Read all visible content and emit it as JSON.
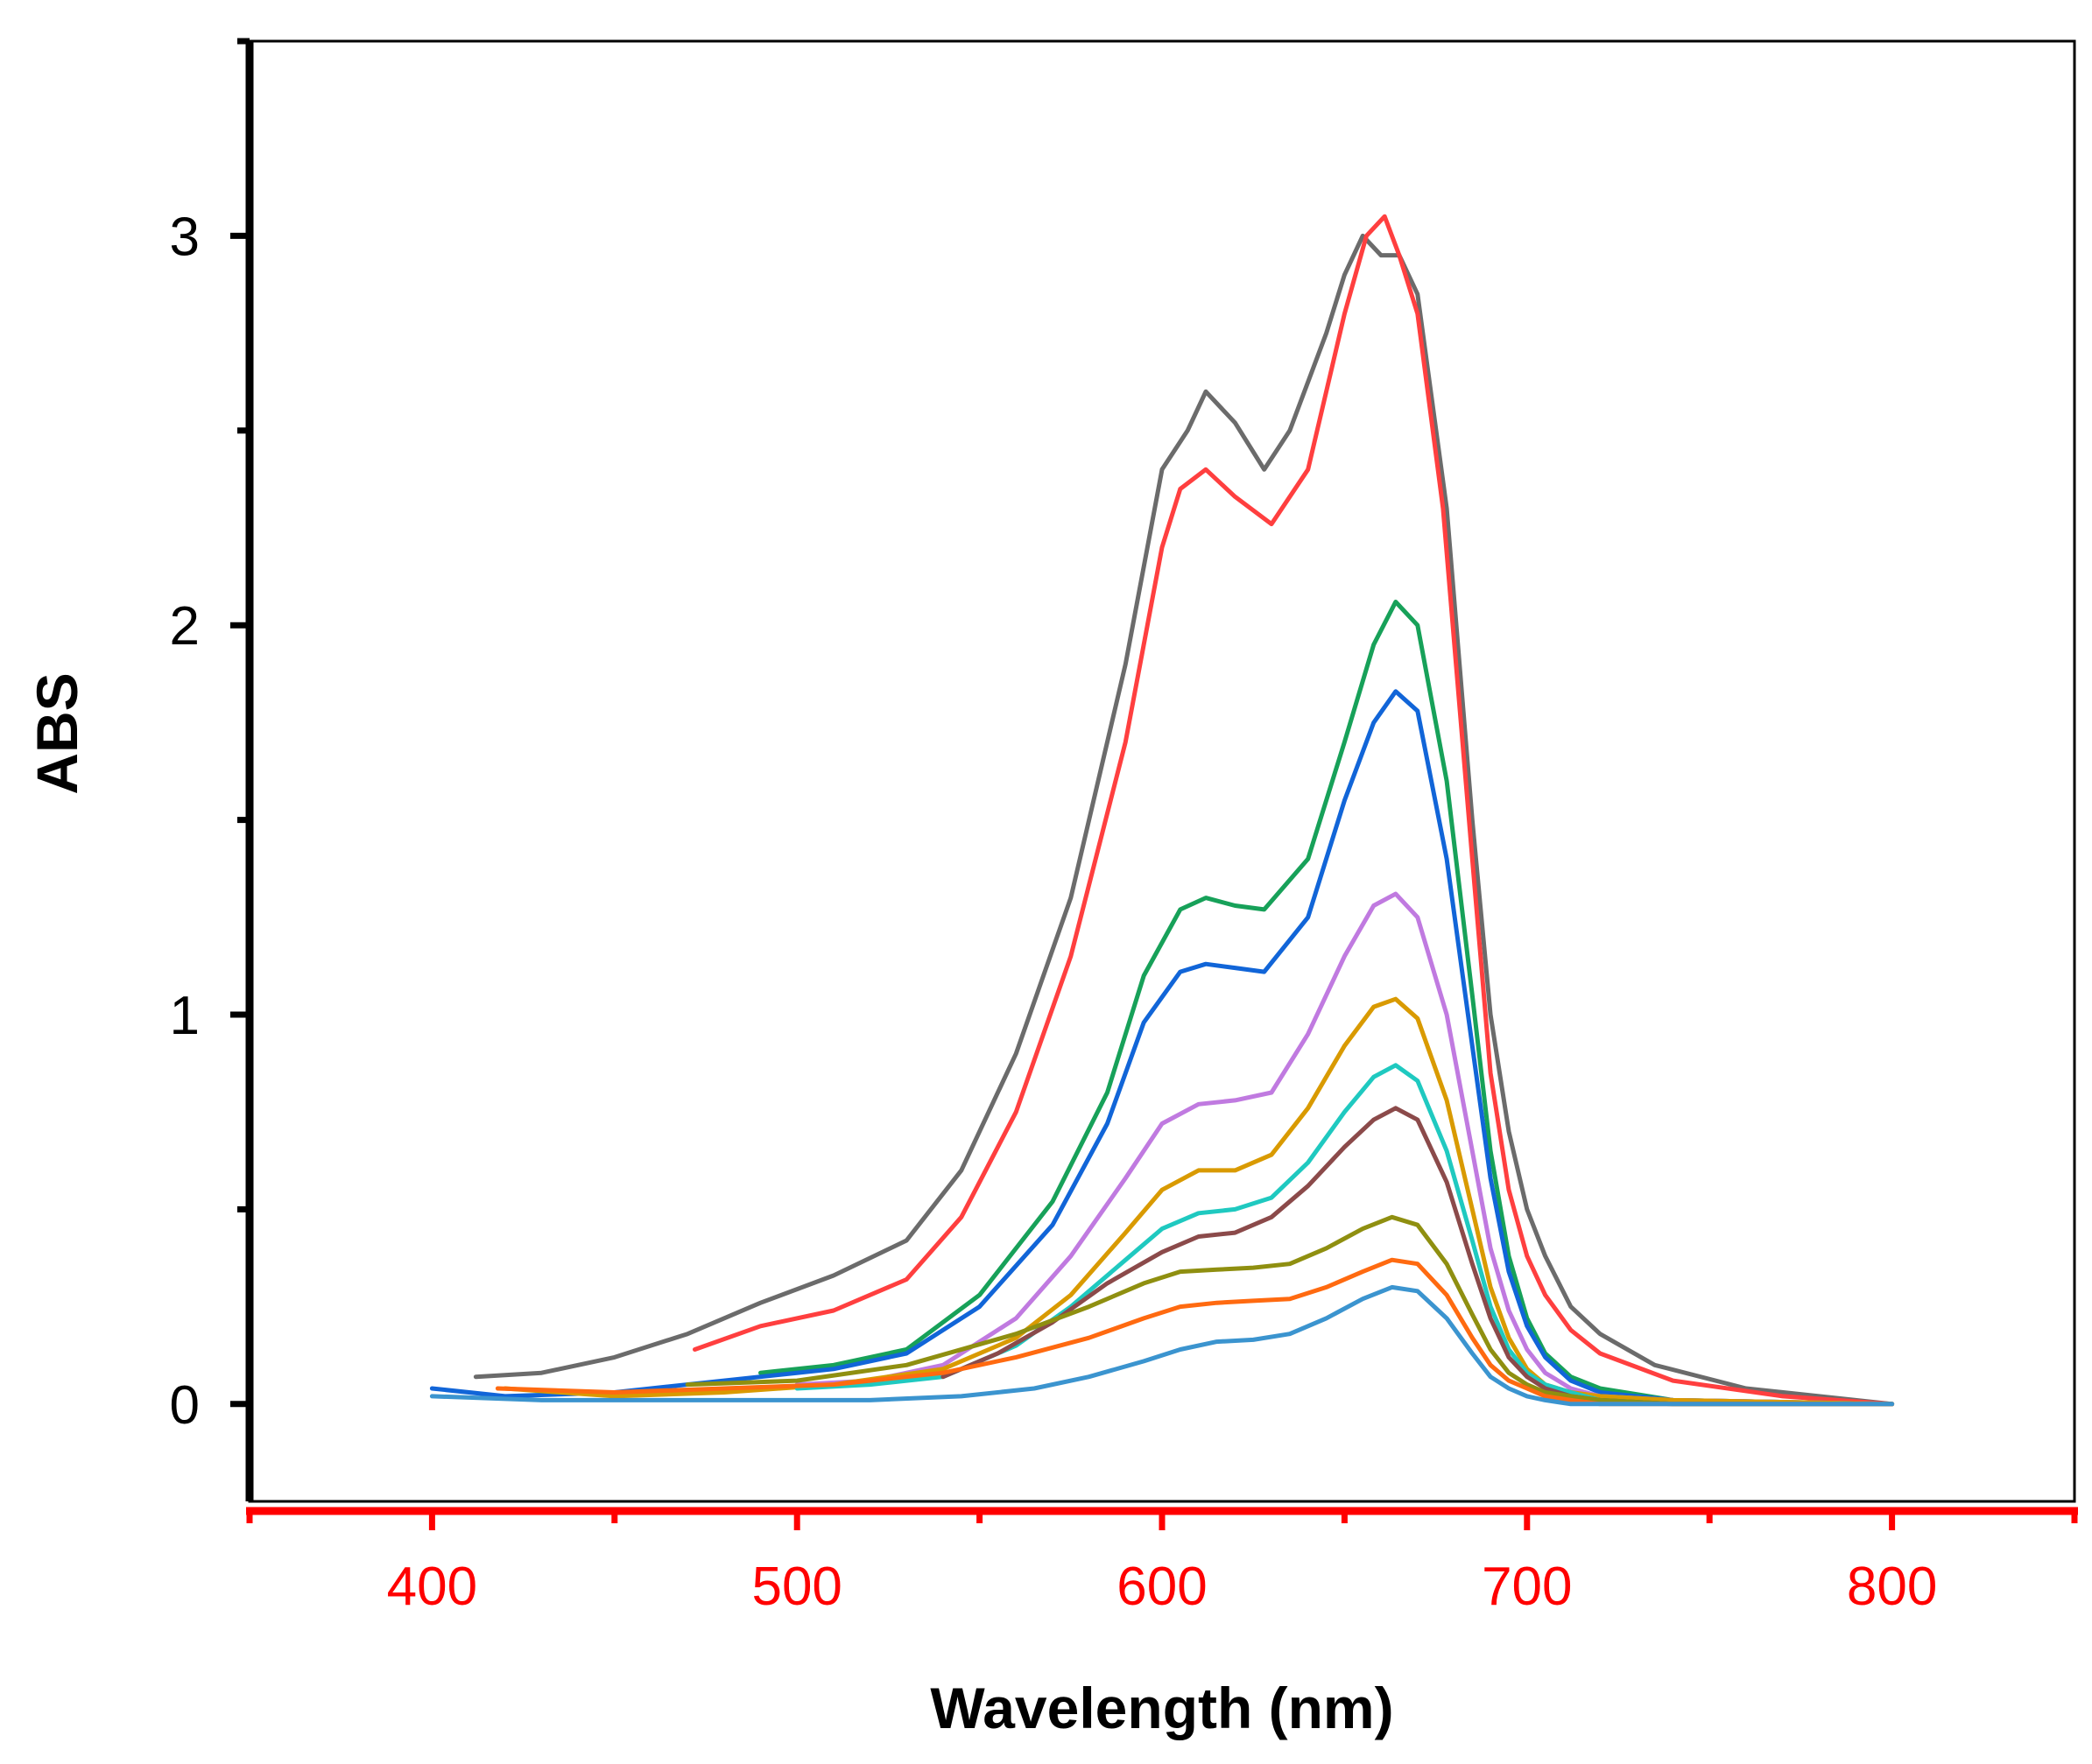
{
  "chart_data": {
    "type": "line",
    "title": "",
    "xlabel": "Wavelength (nm)",
    "ylabel": "ABS",
    "xlim": [
      350,
      850
    ],
    "ylim": [
      -0.25,
      3.5
    ],
    "x_ticks": [
      400,
      500,
      600,
      700,
      800
    ],
    "x_ticks_minor": [
      350,
      450,
      550,
      650,
      750,
      850
    ],
    "y_ticks": [
      0,
      1,
      2,
      3
    ],
    "y_ticks_minor": [
      0.5,
      1.5,
      2.5,
      3.5
    ],
    "grid": false,
    "legend": "none",
    "colors": {
      "x_axis": "#ff0000",
      "x_tick_labels": "#ff0000",
      "y_axis": "#000000",
      "frame": "#000000"
    },
    "series": [
      {
        "name": "series-1",
        "color": "#6b6b6b",
        "x": [
          412,
          430,
          450,
          470,
          490,
          510,
          530,
          545,
          560,
          575,
          590,
          600,
          607,
          612,
          620,
          628,
          635,
          645,
          650,
          655,
          660,
          665,
          670,
          678,
          685,
          690,
          695,
          700,
          705,
          712,
          720,
          735,
          760,
          800
        ],
        "y": [
          0.07,
          0.08,
          0.12,
          0.18,
          0.26,
          0.33,
          0.42,
          0.6,
          0.9,
          1.3,
          1.9,
          2.4,
          2.5,
          2.6,
          2.52,
          2.4,
          2.5,
          2.75,
          2.9,
          3.0,
          2.95,
          2.95,
          2.85,
          2.3,
          1.5,
          1.0,
          0.7,
          0.5,
          0.38,
          0.25,
          0.18,
          0.1,
          0.04,
          0.0
        ]
      },
      {
        "name": "series-2",
        "color": "#ff3f3f",
        "x": [
          472,
          490,
          510,
          530,
          545,
          560,
          575,
          590,
          600,
          605,
          612,
          620,
          630,
          640,
          650,
          656,
          661,
          665,
          670,
          677,
          685,
          690,
          695,
          700,
          705,
          712,
          720,
          740,
          770,
          800
        ],
        "y": [
          0.14,
          0.2,
          0.24,
          0.32,
          0.48,
          0.75,
          1.15,
          1.7,
          2.2,
          2.35,
          2.4,
          2.33,
          2.26,
          2.4,
          2.8,
          3.0,
          3.05,
          2.95,
          2.8,
          2.3,
          1.4,
          0.85,
          0.55,
          0.38,
          0.28,
          0.19,
          0.13,
          0.06,
          0.02,
          0.0
        ]
      },
      {
        "name": "series-3",
        "color": "#17a159",
        "x": [
          490,
          510,
          530,
          550,
          570,
          585,
          595,
          605,
          612,
          620,
          628,
          640,
          650,
          658,
          664,
          670,
          678,
          685,
          690,
          695,
          700,
          705,
          712,
          720,
          740,
          800
        ],
        "y": [
          0.08,
          0.1,
          0.14,
          0.28,
          0.52,
          0.8,
          1.1,
          1.27,
          1.3,
          1.28,
          1.27,
          1.4,
          1.7,
          1.95,
          2.06,
          2.0,
          1.6,
          1.05,
          0.65,
          0.38,
          0.22,
          0.13,
          0.07,
          0.04,
          0.01,
          0.0
        ]
      },
      {
        "name": "series-4",
        "color": "#1165d8",
        "x": [
          400,
          420,
          450,
          480,
          510,
          530,
          550,
          570,
          585,
          595,
          605,
          612,
          620,
          628,
          640,
          650,
          658,
          664,
          670,
          678,
          685,
          690,
          695,
          700,
          705,
          712,
          720,
          740,
          800
        ],
        "y": [
          0.04,
          0.02,
          0.03,
          0.06,
          0.09,
          0.13,
          0.25,
          0.46,
          0.72,
          0.98,
          1.11,
          1.13,
          1.12,
          1.11,
          1.25,
          1.55,
          1.75,
          1.83,
          1.78,
          1.4,
          0.92,
          0.58,
          0.34,
          0.2,
          0.12,
          0.06,
          0.03,
          0.01,
          0.0
        ]
      },
      {
        "name": "series-5",
        "color": "#c07ae0",
        "x": [
          500,
          520,
          540,
          560,
          575,
          590,
          600,
          610,
          620,
          630,
          640,
          650,
          658,
          664,
          670,
          678,
          685,
          690,
          695,
          700,
          705,
          712,
          720,
          740,
          800
        ],
        "y": [
          0.05,
          0.06,
          0.1,
          0.22,
          0.38,
          0.58,
          0.72,
          0.77,
          0.78,
          0.8,
          0.95,
          1.15,
          1.28,
          1.31,
          1.25,
          1.0,
          0.65,
          0.4,
          0.24,
          0.14,
          0.08,
          0.04,
          0.02,
          0.01,
          0.0
        ]
      },
      {
        "name": "series-6",
        "color": "#d99a00",
        "x": [
          420,
          450,
          480,
          510,
          540,
          560,
          575,
          590,
          600,
          610,
          620,
          630,
          640,
          650,
          658,
          664,
          670,
          678,
          685,
          690,
          695,
          700,
          705,
          712,
          720,
          740,
          800
        ],
        "y": [
          0.04,
          0.02,
          0.03,
          0.05,
          0.09,
          0.17,
          0.28,
          0.44,
          0.55,
          0.6,
          0.6,
          0.64,
          0.76,
          0.92,
          1.02,
          1.04,
          0.99,
          0.78,
          0.5,
          0.3,
          0.17,
          0.09,
          0.05,
          0.03,
          0.02,
          0.01,
          0.0
        ]
      },
      {
        "name": "series-7",
        "color": "#1fc9c0",
        "x": [
          500,
          520,
          540,
          560,
          575,
          590,
          600,
          610,
          620,
          630,
          640,
          650,
          658,
          664,
          670,
          678,
          685,
          690,
          695,
          700,
          705,
          712,
          720,
          740,
          800
        ],
        "y": [
          0.04,
          0.05,
          0.07,
          0.15,
          0.25,
          0.37,
          0.45,
          0.49,
          0.5,
          0.53,
          0.62,
          0.75,
          0.84,
          0.87,
          0.83,
          0.65,
          0.42,
          0.25,
          0.14,
          0.08,
          0.05,
          0.03,
          0.01,
          0.0,
          0.0
        ]
      },
      {
        "name": "series-8",
        "color": "#8b4a4a",
        "x": [
          540,
          555,
          570,
          585,
          600,
          610,
          620,
          630,
          640,
          650,
          658,
          664,
          670,
          678,
          685,
          690,
          695,
          700,
          705,
          712,
          720,
          740,
          800
        ],
        "y": [
          0.07,
          0.13,
          0.21,
          0.31,
          0.39,
          0.43,
          0.44,
          0.48,
          0.56,
          0.66,
          0.73,
          0.76,
          0.73,
          0.57,
          0.36,
          0.22,
          0.12,
          0.07,
          0.04,
          0.02,
          0.01,
          0.0,
          0.0
        ]
      },
      {
        "name": "series-9",
        "color": "#8f8f10",
        "x": [
          470,
          500,
          530,
          560,
          580,
          595,
          605,
          615,
          625,
          635,
          645,
          655,
          663,
          670,
          678,
          685,
          690,
          695,
          700,
          705,
          712,
          720,
          740,
          800
        ],
        "y": [
          0.05,
          0.06,
          0.1,
          0.18,
          0.25,
          0.31,
          0.34,
          0.345,
          0.35,
          0.36,
          0.4,
          0.45,
          0.48,
          0.46,
          0.36,
          0.23,
          0.14,
          0.08,
          0.05,
          0.03,
          0.02,
          0.01,
          0.0,
          0.0
        ]
      },
      {
        "name": "series-10",
        "color": "#ff6a10",
        "x": [
          418,
          450,
          480,
          510,
          540,
          560,
          580,
          595,
          605,
          615,
          625,
          635,
          645,
          655,
          663,
          670,
          678,
          685,
          690,
          695,
          700,
          705,
          712,
          720,
          740,
          800
        ],
        "y": [
          0.04,
          0.03,
          0.04,
          0.05,
          0.08,
          0.12,
          0.17,
          0.22,
          0.25,
          0.26,
          0.265,
          0.27,
          0.3,
          0.34,
          0.37,
          0.36,
          0.28,
          0.17,
          0.1,
          0.06,
          0.04,
          0.02,
          0.01,
          0.0,
          0.0,
          0.0
        ]
      },
      {
        "name": "series-11",
        "color": "#3b94cf",
        "x": [
          400,
          430,
          460,
          490,
          520,
          545,
          565,
          580,
          595,
          605,
          615,
          625,
          635,
          645,
          655,
          663,
          670,
          678,
          685,
          690,
          695,
          700,
          705,
          712,
          720,
          740,
          800
        ],
        "y": [
          0.02,
          0.01,
          0.01,
          0.01,
          0.01,
          0.02,
          0.04,
          0.07,
          0.11,
          0.14,
          0.16,
          0.165,
          0.18,
          0.22,
          0.27,
          0.3,
          0.29,
          0.22,
          0.13,
          0.07,
          0.04,
          0.02,
          0.01,
          0.0,
          0.0,
          0.0,
          0.0
        ]
      }
    ]
  }
}
